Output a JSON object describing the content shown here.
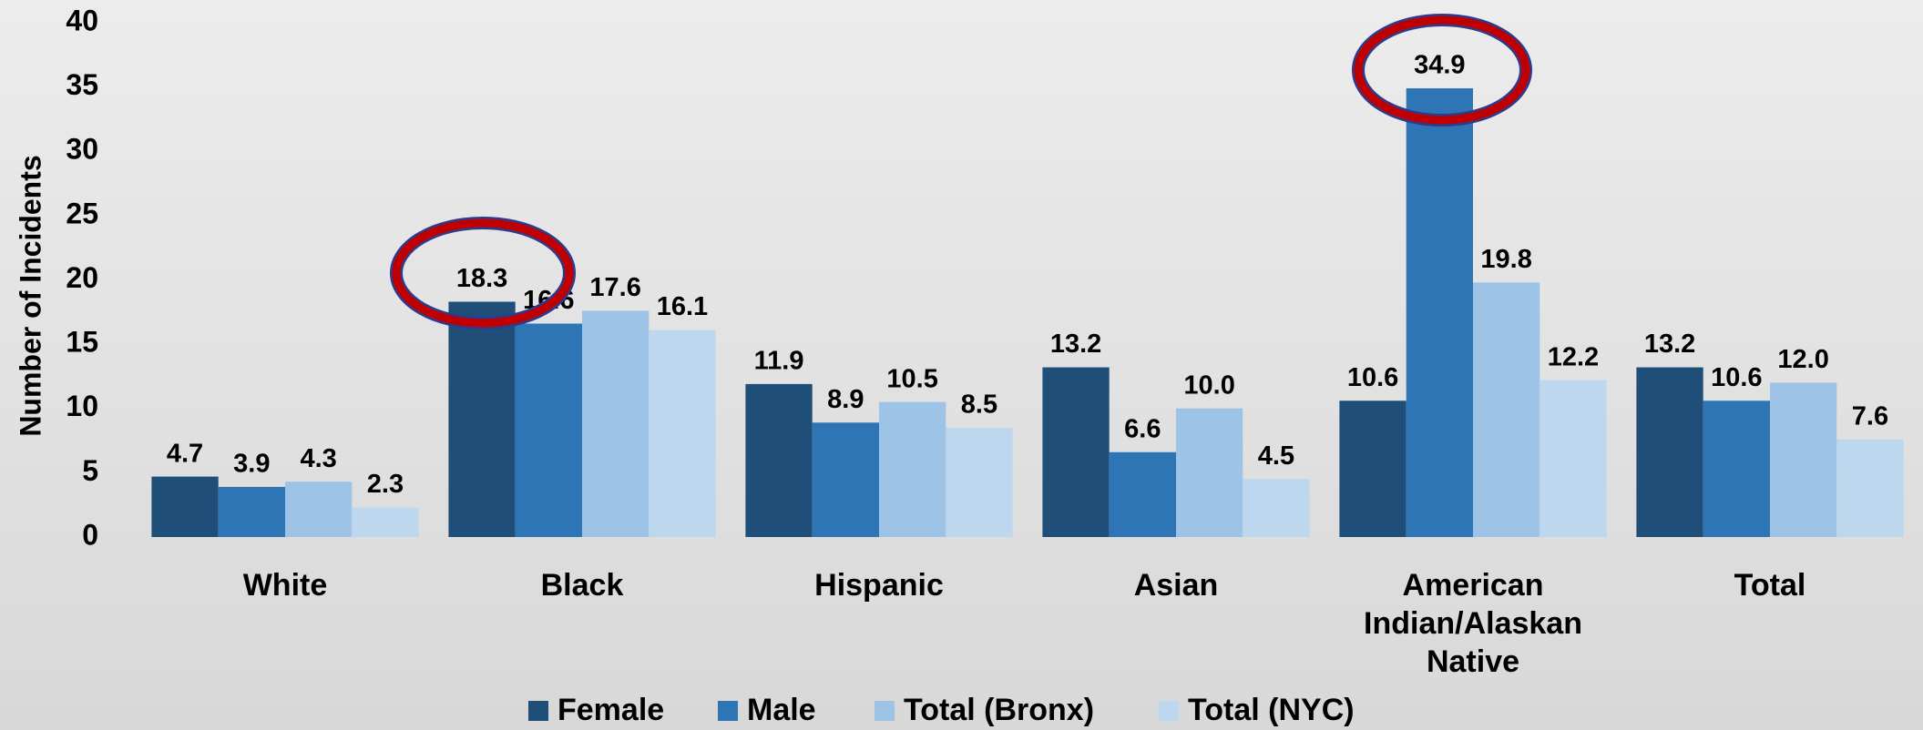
{
  "chart_data": {
    "type": "bar",
    "y_label": "Number of Incidents",
    "categories": [
      "White",
      "Black",
      "Hispanic",
      "Asian",
      "American Indian/Alaskan Native",
      "Total"
    ],
    "series": [
      {
        "name": "Female",
        "color": "#1f4e79",
        "values": [
          4.7,
          18.3,
          11.9,
          13.2,
          10.6,
          13.2
        ]
      },
      {
        "name": "Male",
        "color": "#2e75b6",
        "values": [
          3.9,
          16.6,
          8.9,
          6.6,
          34.9,
          10.6
        ]
      },
      {
        "name": "Total (Bronx)",
        "color": "#9dc3e6",
        "values": [
          4.3,
          17.6,
          10.5,
          10,
          19.8,
          12
        ],
        "value_labels": [
          "4.3",
          "17.6",
          "10.5",
          "10.0",
          "19.8",
          "12.0"
        ]
      },
      {
        "name": "Total (NYC)",
        "color": "#bdd7ee",
        "values": [
          2.3,
          16.1,
          8.5,
          4.5,
          12.2,
          7.6
        ]
      }
    ],
    "ylim": [
      0,
      40
    ],
    "yticks": [
      0,
      5,
      10,
      15,
      20,
      25,
      30,
      35,
      40
    ],
    "grid": false,
    "legend": "bottom"
  }
}
